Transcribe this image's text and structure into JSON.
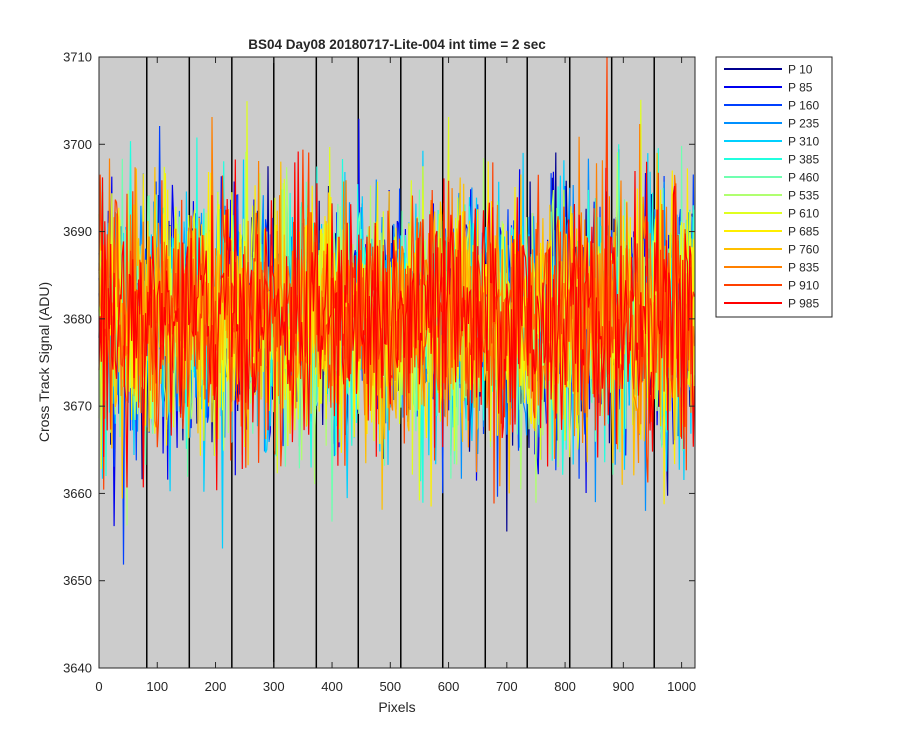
{
  "chart_data": {
    "type": "line",
    "title": "BS04 Day08 20180717-Lite-004 int time = 2 sec",
    "xlabel": "Pixels",
    "ylabel": "Cross Track Signal (ADU)",
    "xlim": [
      0,
      1023
    ],
    "ylim": [
      3640,
      3710
    ],
    "xticks": [
      0,
      100,
      200,
      300,
      400,
      500,
      600,
      700,
      800,
      900,
      1000
    ],
    "yticks": [
      3640,
      3650,
      3660,
      3670,
      3680,
      3690,
      3700,
      3710
    ],
    "background": "#cccccc",
    "grid": false,
    "vertical_markers": [
      82,
      155,
      228,
      300,
      373,
      445,
      518,
      590,
      663,
      735,
      808,
      880,
      953
    ],
    "legend_position": "outside-right",
    "series": [
      {
        "name": "P 10",
        "color": "#00008f",
        "mean": 3680,
        "spread": 7
      },
      {
        "name": "P 85",
        "color": "#0000ef",
        "mean": 3680,
        "spread": 7
      },
      {
        "name": "P 160",
        "color": "#0040ff",
        "mean": 3680,
        "spread": 7
      },
      {
        "name": "P 235",
        "color": "#0090ff",
        "mean": 3680,
        "spread": 7
      },
      {
        "name": "P 310",
        "color": "#00d0ff",
        "mean": 3680,
        "spread": 7
      },
      {
        "name": "P 385",
        "color": "#20ffdf",
        "mean": 3680,
        "spread": 7
      },
      {
        "name": "P 460",
        "color": "#70ffb0",
        "mean": 3680,
        "spread": 7
      },
      {
        "name": "P 535",
        "color": "#b0ff70",
        "mean": 3680,
        "spread": 7
      },
      {
        "name": "P 610",
        "color": "#dfff20",
        "mean": 3680,
        "spread": 7
      },
      {
        "name": "P 685",
        "color": "#ffef00",
        "mean": 3680,
        "spread": 7
      },
      {
        "name": "P 760",
        "color": "#ffc000",
        "mean": 3680,
        "spread": 7
      },
      {
        "name": "P 835",
        "color": "#ff8000",
        "mean": 3680,
        "spread": 7
      },
      {
        "name": "P 910",
        "color": "#ff4000",
        "mean": 3680,
        "spread": 7
      },
      {
        "name": "P 985",
        "color": "#ff0000",
        "mean": 3680,
        "spread": 7
      }
    ]
  }
}
